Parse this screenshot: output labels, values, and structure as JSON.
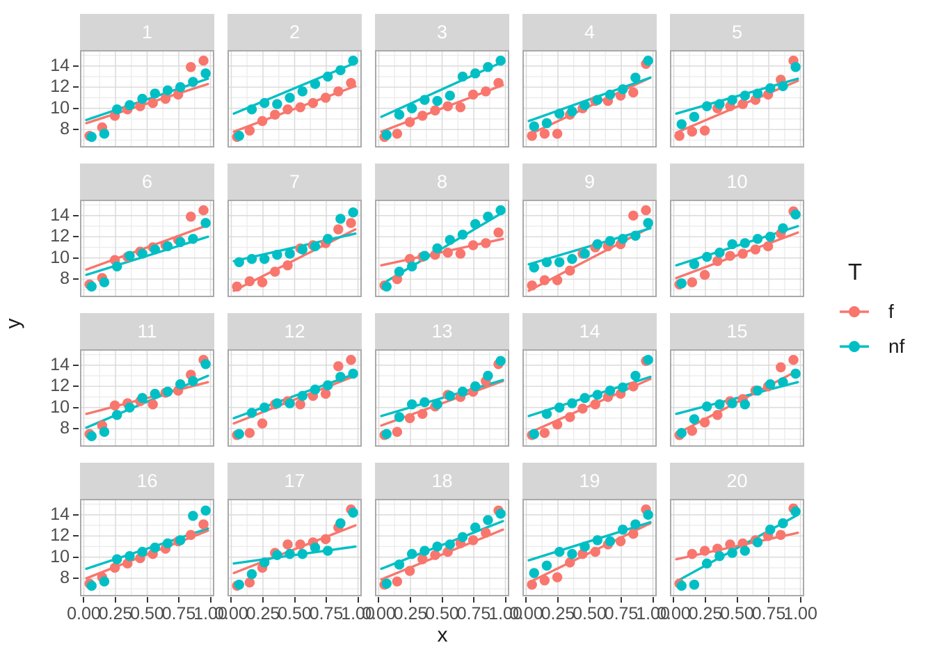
{
  "chart_data": {
    "type": "scatter",
    "title": "",
    "xlabel": "x",
    "ylabel": "y",
    "facet_variable_levels": [
      "1",
      "2",
      "3",
      "4",
      "5",
      "6",
      "7",
      "8",
      "9",
      "10",
      "11",
      "12",
      "13",
      "14",
      "15",
      "16",
      "17",
      "18",
      "19",
      "20"
    ],
    "x_ticks": [
      "0.00",
      "0.25",
      "0.50",
      "0.75",
      "1.00"
    ],
    "x_tick_values": [
      0,
      0.25,
      0.5,
      0.75,
      1
    ],
    "y_ticks": [
      "8",
      "10",
      "12",
      "14"
    ],
    "y_tick_values": [
      8,
      10,
      12,
      14
    ],
    "xlim": [
      -0.03,
      1.03
    ],
    "ylim": [
      6.3,
      15.5
    ],
    "grid": "on",
    "legend": {
      "title": "T",
      "position": "right",
      "entries": [
        {
          "label": "f",
          "color": "#F8766D"
        },
        {
          "label": "nf",
          "color": "#00BFC4"
        }
      ]
    },
    "x": [
      0.05,
      0.15,
      0.25,
      0.35,
      0.45,
      0.55,
      0.65,
      0.75,
      0.85,
      0.95
    ],
    "line_x": [
      0.02,
      0.98
    ],
    "panels": [
      {
        "label": "1",
        "f_y": [
          7.4,
          8.2,
          9.3,
          9.9,
          10.2,
          10.5,
          10.9,
          11.3,
          13.9,
          14.5
        ],
        "nf_y": [
          7.3,
          7.6,
          9.9,
          10.3,
          10.9,
          11.4,
          11.7,
          12.0,
          12.5,
          13.3
        ],
        "f_line": [
          8.6,
          12.3
        ],
        "nf_line": [
          8.9,
          12.8
        ]
      },
      {
        "label": "2",
        "f_y": [
          7.3,
          7.9,
          8.8,
          9.4,
          9.9,
          10.1,
          10.5,
          11.0,
          11.6,
          12.4
        ],
        "nf_y": [
          7.4,
          9.9,
          10.5,
          10.4,
          11.0,
          11.6,
          12.3,
          13.0,
          13.6,
          14.5
        ],
        "f_line": [
          7.8,
          12.1
        ],
        "nf_line": [
          9.5,
          14.3
        ]
      },
      {
        "label": "3",
        "f_y": [
          7.3,
          7.6,
          8.7,
          9.3,
          9.8,
          10.2,
          10.1,
          11.3,
          11.6,
          12.4
        ],
        "nf_y": [
          7.5,
          9.4,
          10.0,
          10.8,
          10.7,
          11.2,
          13.0,
          13.3,
          13.9,
          14.5
        ],
        "f_line": [
          7.8,
          12.2
        ],
        "nf_line": [
          9.2,
          14.4
        ]
      },
      {
        "label": "4",
        "f_y": [
          7.4,
          7.6,
          7.6,
          9.4,
          10.0,
          10.7,
          10.7,
          11.2,
          11.5,
          14.2
        ],
        "nf_y": [
          8.3,
          8.6,
          9.5,
          9.7,
          10.3,
          10.8,
          11.3,
          11.8,
          12.9,
          14.5
        ],
        "f_line": [
          7.5,
          12.9
        ],
        "nf_line": [
          8.8,
          12.9
        ]
      },
      {
        "label": "5",
        "f_y": [
          7.4,
          7.8,
          7.9,
          10.0,
          10.2,
          10.4,
          10.8,
          11.3,
          12.7,
          14.5
        ],
        "nf_y": [
          8.5,
          9.2,
          10.2,
          10.4,
          10.8,
          11.2,
          11.4,
          11.9,
          12.1,
          13.9
        ],
        "f_line": [
          7.7,
          12.6
        ],
        "nf_line": [
          9.5,
          12.8
        ]
      },
      {
        "label": "6",
        "f_y": [
          7.5,
          8.1,
          9.8,
          10.1,
          10.6,
          11.0,
          11.2,
          11.7,
          13.9,
          14.5
        ],
        "nf_y": [
          7.3,
          7.7,
          9.2,
          10.2,
          10.4,
          10.8,
          11.1,
          11.5,
          11.8,
          13.3
        ],
        "f_line": [
          8.9,
          13.1
        ],
        "nf_line": [
          8.4,
          12.0
        ]
      },
      {
        "label": "7",
        "f_y": [
          7.3,
          7.8,
          7.7,
          8.7,
          9.3,
          10.9,
          11.2,
          11.4,
          12.7,
          13.3
        ],
        "nf_y": [
          9.6,
          9.9,
          9.9,
          10.3,
          10.4,
          10.8,
          11.1,
          11.8,
          13.7,
          14.3
        ],
        "f_line": [
          6.9,
          12.7
        ],
        "nf_line": [
          9.7,
          12.3
        ]
      },
      {
        "label": "8",
        "f_y": [
          7.4,
          8.0,
          9.9,
          10.1,
          10.3,
          10.5,
          10.4,
          11.2,
          11.4,
          12.4
        ],
        "nf_y": [
          7.3,
          8.7,
          9.2,
          10.2,
          10.9,
          11.7,
          12.2,
          13.2,
          13.9,
          14.5
        ],
        "f_line": [
          9.3,
          11.8
        ],
        "nf_line": [
          7.5,
          14.3
        ]
      },
      {
        "label": "9",
        "f_y": [
          7.4,
          7.9,
          7.9,
          8.8,
          10.4,
          11.0,
          11.1,
          11.3,
          14.0,
          14.5
        ],
        "nf_y": [
          9.1,
          9.6,
          9.6,
          9.9,
          10.4,
          11.3,
          11.6,
          11.8,
          12.1,
          13.3
        ],
        "f_line": [
          6.9,
          12.9
        ],
        "nf_line": [
          9.4,
          12.8
        ]
      },
      {
        "label": "10",
        "f_y": [
          7.5,
          7.7,
          8.4,
          9.7,
          10.2,
          10.4,
          10.8,
          11.1,
          12.3,
          14.4
        ],
        "nf_y": [
          7.6,
          9.4,
          10.1,
          10.5,
          11.3,
          11.4,
          11.8,
          12.0,
          12.8,
          14.1
        ],
        "f_line": [
          8.1,
          12.4
        ],
        "nf_line": [
          9.3,
          13.0
        ]
      },
      {
        "label": "11",
        "f_y": [
          7.5,
          8.3,
          10.2,
          10.4,
          10.6,
          10.3,
          11.4,
          11.6,
          13.1,
          14.5
        ],
        "nf_y": [
          7.3,
          7.7,
          9.3,
          10.0,
          10.9,
          11.3,
          11.5,
          12.2,
          12.5,
          14.1
        ],
        "f_line": [
          9.4,
          12.4
        ],
        "nf_line": [
          8.1,
          13.0
        ]
      },
      {
        "label": "12",
        "f_y": [
          7.4,
          7.6,
          8.5,
          10.3,
          10.6,
          10.3,
          11.1,
          11.3,
          13.9,
          14.5
        ],
        "nf_y": [
          7.5,
          9.5,
          10.0,
          10.4,
          10.4,
          11.1,
          11.7,
          12.1,
          12.9,
          13.2
        ],
        "f_line": [
          8.5,
          13.0
        ],
        "nf_line": [
          9.0,
          13.2
        ]
      },
      {
        "label": "13",
        "f_y": [
          7.4,
          7.7,
          9.0,
          9.4,
          10.1,
          11.2,
          11.0,
          11.5,
          12.5,
          14.1
        ],
        "nf_y": [
          7.5,
          9.1,
          10.3,
          10.5,
          10.3,
          11.1,
          11.5,
          12.0,
          13.0,
          14.4
        ],
        "f_line": [
          8.3,
          12.5
        ],
        "nf_line": [
          9.2,
          12.6
        ]
      },
      {
        "label": "14",
        "f_y": [
          7.4,
          7.6,
          8.4,
          9.1,
          9.9,
          10.3,
          11.0,
          11.3,
          12.0,
          14.4
        ],
        "nf_y": [
          7.5,
          9.4,
          10.0,
          10.4,
          10.9,
          11.2,
          11.6,
          11.9,
          13.0,
          14.5
        ],
        "f_line": [
          7.6,
          12.7
        ],
        "nf_line": [
          9.2,
          12.9
        ]
      },
      {
        "label": "15",
        "f_y": [
          7.4,
          7.8,
          8.6,
          9.3,
          10.6,
          10.8,
          11.6,
          12.0,
          13.8,
          14.5
        ],
        "nf_y": [
          7.6,
          8.9,
          10.1,
          10.3,
          10.4,
          10.3,
          11.6,
          12.2,
          12.4,
          13.2
        ],
        "f_line": [
          7.5,
          13.5
        ],
        "nf_line": [
          9.4,
          12.4
        ]
      },
      {
        "label": "16",
        "f_y": [
          7.5,
          8.1,
          9.0,
          9.4,
          9.9,
          10.3,
          10.8,
          11.5,
          12.1,
          13.1
        ],
        "nf_y": [
          7.3,
          7.7,
          9.8,
          10.1,
          10.5,
          10.9,
          11.3,
          11.6,
          13.9,
          14.4
        ],
        "f_line": [
          8.0,
          12.5
        ],
        "nf_line": [
          8.9,
          12.7
        ]
      },
      {
        "label": "17",
        "f_y": [
          7.3,
          7.6,
          9.0,
          10.4,
          11.2,
          11.2,
          11.4,
          11.7,
          12.8,
          14.5
        ],
        "nf_y": [
          7.4,
          8.4,
          9.5,
          10.2,
          10.3,
          10.3,
          10.9,
          10.6,
          13.2,
          14.2
        ],
        "f_line": [
          8.5,
          13.0
        ],
        "nf_line": [
          9.4,
          11.0
        ]
      },
      {
        "label": "18",
        "f_y": [
          7.4,
          7.7,
          8.7,
          9.8,
          10.2,
          10.5,
          11.3,
          11.6,
          12.3,
          14.4
        ],
        "nf_y": [
          7.5,
          9.3,
          10.3,
          10.6,
          11.0,
          11.2,
          11.9,
          12.8,
          13.5,
          14.1
        ],
        "f_line": [
          7.9,
          12.6
        ],
        "nf_line": [
          8.9,
          13.4
        ]
      },
      {
        "label": "19",
        "f_y": [
          7.4,
          7.8,
          8.1,
          9.5,
          10.3,
          10.5,
          11.2,
          11.5,
          12.2,
          14.5
        ],
        "nf_y": [
          8.5,
          9.2,
          10.5,
          10.3,
          11.0,
          11.6,
          11.5,
          12.6,
          13.1,
          14.0
        ],
        "f_line": [
          7.6,
          13.2
        ],
        "nf_line": [
          9.7,
          13.3
        ]
      },
      {
        "label": "20",
        "f_y": [
          7.5,
          10.3,
          10.6,
          10.8,
          11.2,
          11.3,
          11.6,
          12.0,
          12.1,
          14.6
        ],
        "nf_y": [
          7.3,
          7.4,
          9.4,
          10.1,
          10.4,
          10.6,
          11.4,
          12.6,
          13.2,
          14.3
        ],
        "f_line": [
          9.8,
          12.3
        ],
        "nf_line": [
          7.7,
          14.0
        ]
      }
    ],
    "style_colors": {
      "strip_bg": "#d6d6d6",
      "strip_text": "#ffffff",
      "grid_major": "#dcdcdc",
      "grid_minor": "#ececec",
      "panel_border": "#a9a9a9",
      "tick_text": "#4d4d4d"
    }
  }
}
